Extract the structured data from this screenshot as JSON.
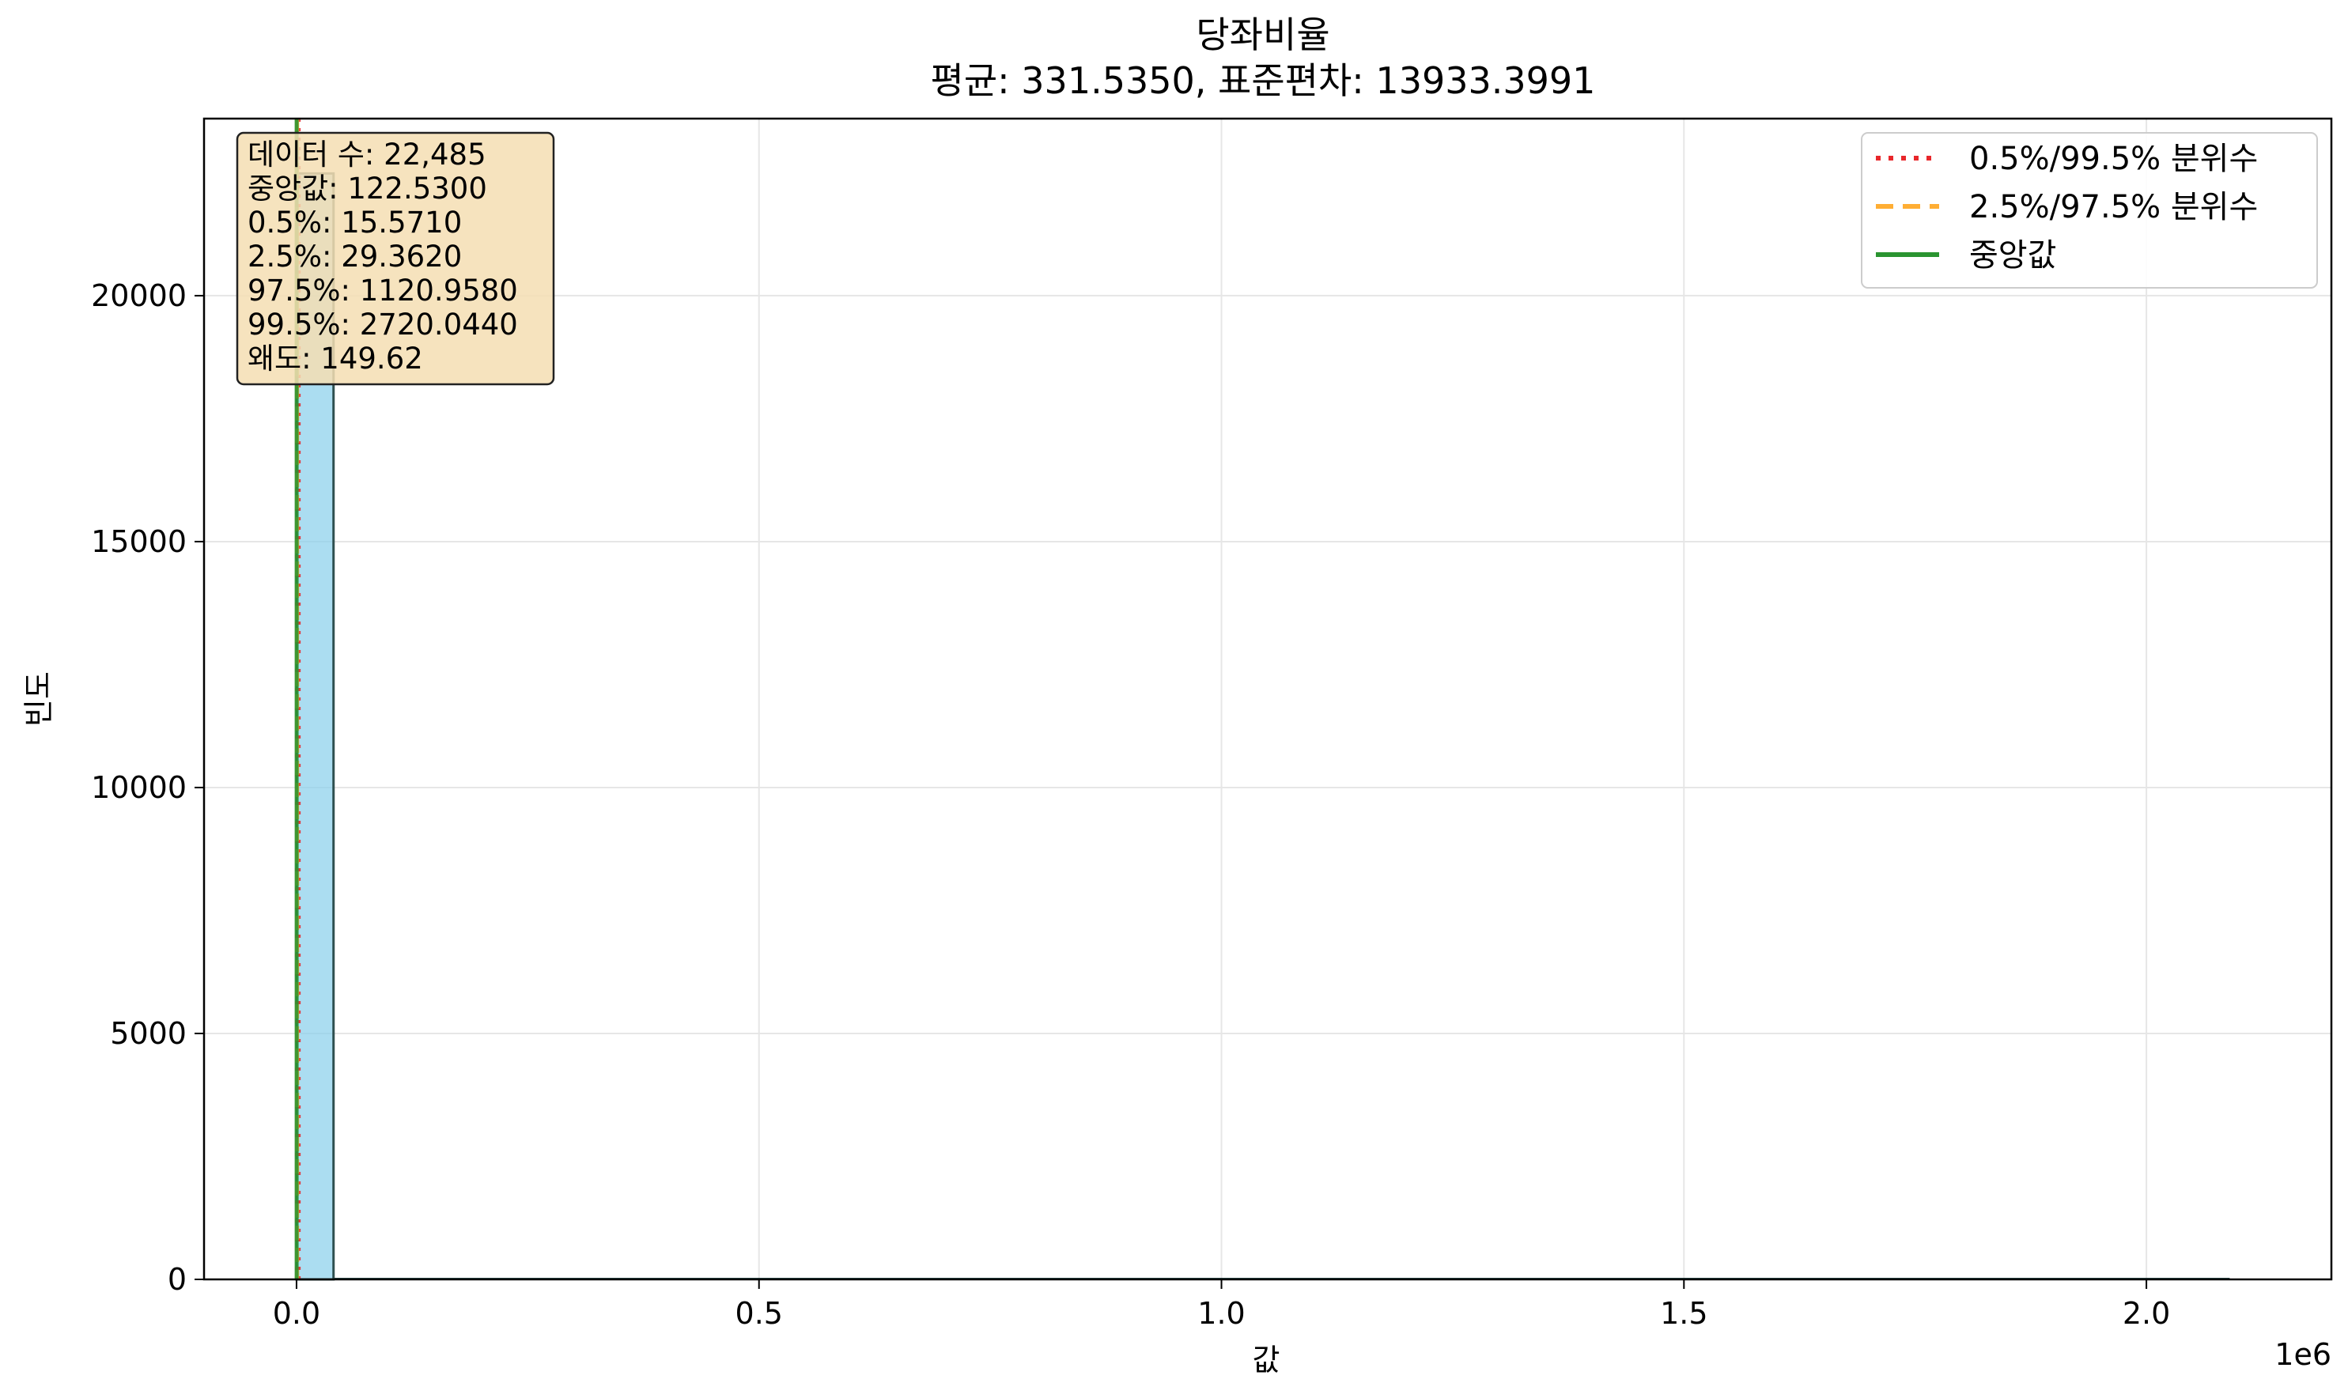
{
  "chart_data": {
    "type": "bar",
    "title": "당좌비율",
    "subtitle": "평균: 331.5350, 표준편차: 13933.3991",
    "xlabel": "값",
    "ylabel": "빈도",
    "x_offset_label": "1e6",
    "xlim": [
      -0.1,
      2.2
    ],
    "ylim": [
      0,
      23600
    ],
    "x_ticks": [
      0.0,
      0.5,
      1.0,
      1.5,
      2.0
    ],
    "x_tick_labels": [
      "0.0",
      "0.5",
      "1.0",
      "1.5",
      "2.0"
    ],
    "y_ticks": [
      0,
      5000,
      10000,
      15000,
      20000
    ],
    "y_tick_labels": [
      "0",
      "5000",
      "10000",
      "15000",
      "20000"
    ],
    "grid": true,
    "bins": [
      {
        "x0": 0.0,
        "x1": 0.04,
        "count": 22485
      }
    ],
    "reference_lines": [
      {
        "name": "0.5%/99.5% 분위수",
        "style": "dotted",
        "color": "#e8272b",
        "x": [
          1.5571e-05,
          0.002720044
        ]
      },
      {
        "name": "2.5%/97.5% 분위수",
        "style": "dashed",
        "color": "#ffae34",
        "x": [
          2.9362e-05,
          0.001120958
        ]
      },
      {
        "name": "중앙값",
        "style": "solid",
        "color": "#2a9430",
        "x": [
          0.00012253
        ]
      }
    ],
    "legend": {
      "position": "upper right",
      "entries": [
        {
          "label": "0.5%/99.5% 분위수",
          "color": "#e8272b",
          "style": "dotted"
        },
        {
          "label": "2.5%/97.5% 분위수",
          "color": "#ffae34",
          "style": "dashed"
        },
        {
          "label": "중앙값",
          "color": "#2a9430",
          "style": "solid"
        }
      ]
    },
    "stats_box": {
      "position": "upper left",
      "lines": [
        "데이터 수: 22,485",
        "중앙값: 122.5300",
        "0.5%: 15.5710",
        "2.5%: 29.3620",
        "97.5%: 1120.9580",
        "99.5%: 2720.0440",
        "왜도: 149.62"
      ]
    },
    "colors": {
      "bar_fill": "#87ceeb",
      "bar_edge": "#2f4f4f",
      "grid": "#e6e6e6",
      "stats_box_fill": "#f5deb3"
    }
  }
}
